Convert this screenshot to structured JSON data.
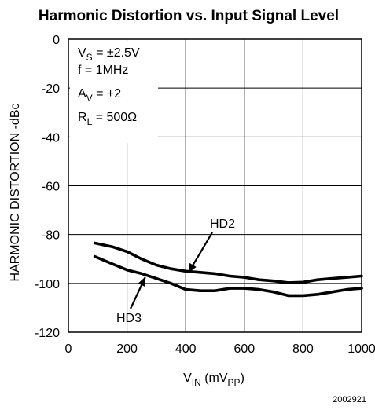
{
  "chart_data": {
    "type": "line",
    "title": "Harmonic Distortion vs. Input Signal Level",
    "xlabel": {
      "main": "V",
      "sub1": "IN",
      "mid": " (mV",
      "sub2": "PP",
      "end": ")"
    },
    "ylabel": "HARMONIC DISTORTION -dBc",
    "xlim": [
      0,
      1000
    ],
    "ylim": [
      -120,
      0
    ],
    "xticks": [
      0,
      200,
      400,
      600,
      800,
      1000
    ],
    "yticks": [
      0,
      -20,
      -40,
      -60,
      -80,
      -100,
      -120
    ],
    "xtick_labels": [
      "0",
      "200",
      "400",
      "600",
      "800",
      "1000"
    ],
    "ytick_labels": [
      "0",
      "-20",
      "-40",
      "-60",
      "-80",
      "-100",
      "-120"
    ],
    "grid": true,
    "conditions": [
      {
        "main": "V",
        "sub": "S",
        "rest": " = ±2.5V"
      },
      {
        "main": "f = 1MHz",
        "sub": "",
        "rest": ""
      },
      {
        "main": "A",
        "sub": "V",
        "rest": " = +2"
      },
      {
        "main": "R",
        "sub": "L",
        "rest": " = 500Ω"
      }
    ],
    "series": [
      {
        "name": "HD2",
        "x": [
          90,
          150,
          200,
          250,
          300,
          350,
          400,
          450,
          500,
          550,
          600,
          650,
          700,
          750,
          800,
          850,
          900,
          950,
          1000
        ],
        "y": [
          -83.5,
          -85,
          -87,
          -90,
          -92.5,
          -94,
          -95,
          -95.5,
          -96,
          -97,
          -97.5,
          -98.5,
          -99,
          -99.7,
          -99.5,
          -98.5,
          -98,
          -97.5,
          -97
        ]
      },
      {
        "name": "HD3",
        "x": [
          90,
          150,
          200,
          250,
          300,
          350,
          400,
          450,
          500,
          550,
          600,
          650,
          700,
          750,
          800,
          850,
          900,
          950,
          1000
        ],
        "y": [
          -89,
          -92,
          -94.5,
          -96,
          -98,
          -100,
          -102.5,
          -103,
          -103,
          -102,
          -102,
          -102.5,
          -103.5,
          -105,
          -105,
          -104.5,
          -103.5,
          -102.5,
          -102
        ]
      }
    ],
    "series_labels": [
      {
        "text": "HD2",
        "label_x": 1170,
        "label_y": -8,
        "arrow_to_x": 410,
        "arrow_to_y": -95.5
      },
      {
        "text": "HD3",
        "label_x": 170,
        "label_y": -115,
        "arrow_to_x": 262,
        "arrow_to_y": -97.5
      }
    ],
    "figure_id": "2002921"
  }
}
